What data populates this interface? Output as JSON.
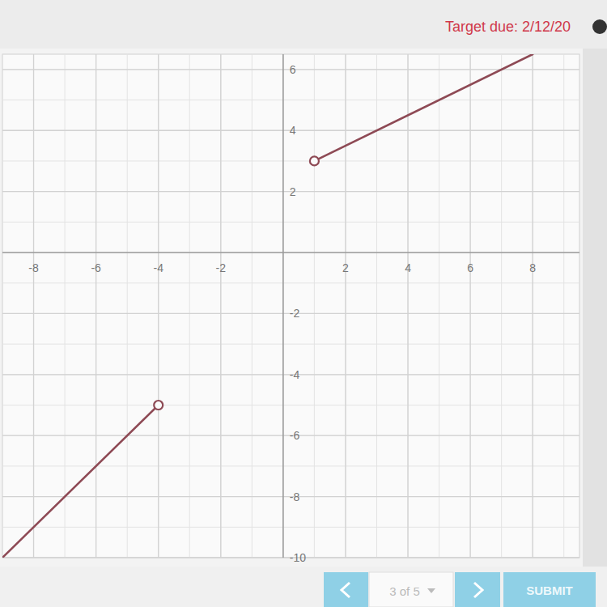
{
  "header": {
    "target_due": "Target due: 2/12/20"
  },
  "footer": {
    "pager": "3 of 5",
    "submit": "SUBMIT"
  },
  "chart_data": {
    "type": "line",
    "xlim": [
      -9,
      9.5
    ],
    "ylim": [
      -10,
      6.5
    ],
    "xticks": [
      -8,
      -6,
      -4,
      -2,
      2,
      4,
      6,
      8
    ],
    "yticks": [
      -10,
      -8,
      -6,
      -4,
      -2,
      2,
      4,
      6
    ],
    "grid": true,
    "color": "#8e4a55",
    "series": [
      {
        "type": "line",
        "x": [
          -9,
          -4
        ],
        "values": [
          -10,
          -5
        ]
      },
      {
        "type": "line",
        "x": [
          1,
          8
        ],
        "values": [
          3,
          6.5
        ]
      },
      {
        "type": "scatter",
        "marker": "open_circle",
        "x": [
          -4,
          1
        ],
        "values": [
          -5,
          3
        ]
      }
    ]
  }
}
